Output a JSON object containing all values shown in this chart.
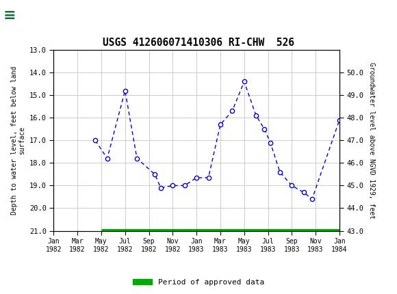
{
  "title": "USGS 412606071410306 RI-CHW  526",
  "ylabel_left": "Depth to water level, feet below land\nsurface",
  "ylabel_right": "Groundwater level above NGVD 1929, feet",
  "ylim_left": [
    21.0,
    13.0
  ],
  "ylim_right": [
    43.0,
    51.0
  ],
  "yticks_left": [
    13.0,
    14.0,
    15.0,
    16.0,
    17.0,
    18.0,
    19.0,
    20.0,
    21.0
  ],
  "yticks_right": [
    43.0,
    44.0,
    45.0,
    46.0,
    47.0,
    48.0,
    49.0,
    50.0
  ],
  "tick_positions": [
    0,
    2,
    4,
    6,
    8,
    10,
    12,
    14,
    16,
    18,
    20,
    22,
    24
  ],
  "tick_labels": [
    "Jan\n1982",
    "Mar\n1982",
    "May\n1982",
    "Jul\n1982",
    "Sep\n1982",
    "Nov\n1982",
    "Jan\n1983",
    "Mar\n1983",
    "May\n1983",
    "Jul\n1983",
    "Sep\n1983",
    "Nov\n1983",
    "Jan\n1984"
  ],
  "pts_x": [
    3.5,
    4.5,
    6.0,
    7.0,
    8.5,
    9.0,
    10.0,
    11.0,
    12.0,
    13.0,
    14.0,
    15.0,
    16.0,
    17.0,
    17.7,
    18.2,
    19.0,
    20.0,
    21.0,
    21.7,
    24.0
  ],
  "pts_y": [
    17.0,
    17.8,
    14.8,
    17.8,
    18.5,
    19.1,
    19.0,
    19.0,
    18.65,
    18.65,
    16.3,
    15.7,
    14.4,
    15.9,
    16.5,
    17.1,
    18.4,
    19.0,
    19.3,
    19.6,
    16.1
  ],
  "line_color": "#0000CC",
  "marker_color": "#0000CC",
  "marker_face": "#ffffff",
  "green_bar_color": "#00AA00",
  "background_color": "#ffffff",
  "header_color": "#1a6b3c",
  "grid_color": "#cccccc",
  "legend_label": "Period of approved data",
  "xlim": [
    0,
    24
  ],
  "green_xmin_months": 4.0,
  "green_xmax_months": 24.0
}
